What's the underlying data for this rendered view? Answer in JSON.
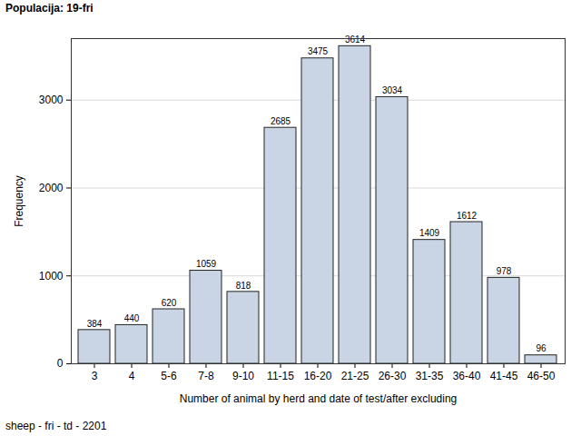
{
  "chart_data": {
    "type": "bar",
    "title": "Populacija: 19-fri",
    "caption": "sheep - fri - td - 2201",
    "x_label": "Number of animal by herd and date of test/after excluding",
    "y_label": "Frequency",
    "categories": [
      "3",
      "4",
      "5-6",
      "7-8",
      "9-10",
      "11-15",
      "16-20",
      "21-25",
      "26-30",
      "31-35",
      "36-40",
      "41-45",
      "46-50"
    ],
    "values": [
      384,
      440,
      620,
      1059,
      818,
      2685,
      3475,
      3614,
      3034,
      1409,
      1612,
      978,
      96
    ],
    "color": "#c9d5e4",
    "ylim": [
      0,
      3700
    ],
    "yticks": [
      0,
      1000,
      2000,
      3000
    ],
    "grid": true,
    "data_labels": true
  }
}
